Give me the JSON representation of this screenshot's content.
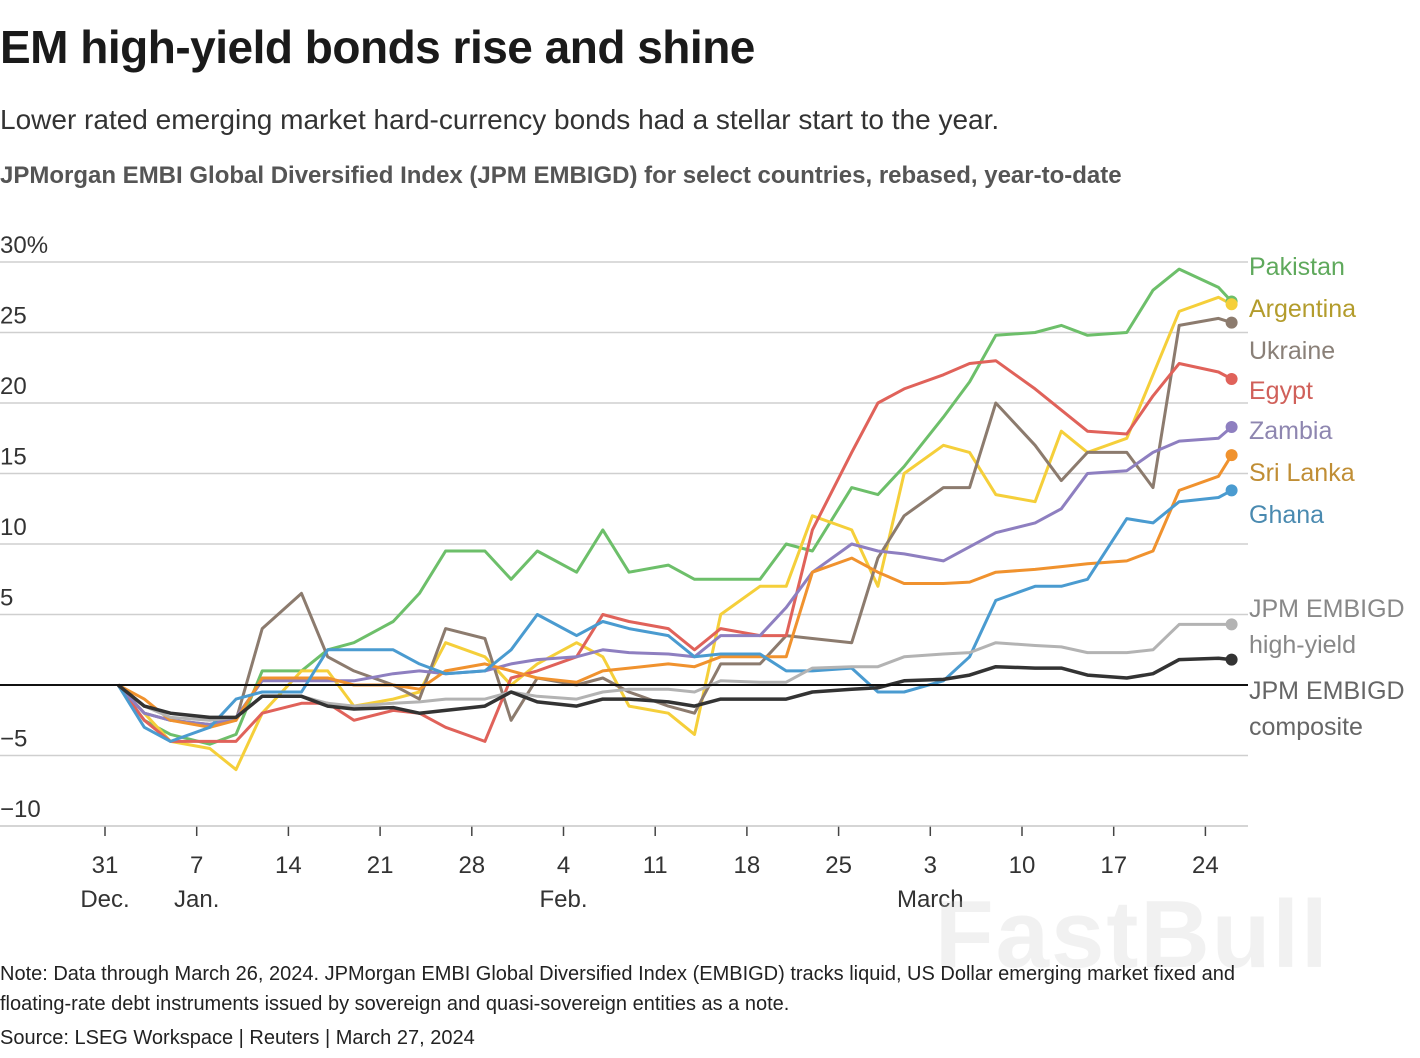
{
  "title": "EM high-yield bonds rise and shine",
  "subtitle": "Lower rated emerging market hard-currency bonds had a stellar start to the year.",
  "notes": {
    "note_line1": "Note: Data through March 26, 2024. JPMorgan EMBI Global Diversified Index (EMBIGD) tracks liquid, US Dollar emerging market fixed and",
    "note_line2": "floating-rate debt instruments issued by sovereign and quasi-sovereign entities as a note.",
    "source": "Source: LSEG Workspace | Reuters | March 27, 2024"
  },
  "watermark": "FastBull",
  "chart_data": {
    "type": "line",
    "title": "JPMorgan EMBI Global Diversified Index (JPM EMBIGD) for select countries, rebased, year-to-date",
    "xlabel": "",
    "ylabel": "",
    "ylim": [
      -10,
      30
    ],
    "yticks": [
      {
        "v": 30,
        "label": "30%"
      },
      {
        "v": 25,
        "label": "25"
      },
      {
        "v": 20,
        "label": "20"
      },
      {
        "v": 15,
        "label": "15"
      },
      {
        "v": 10,
        "label": "10"
      },
      {
        "v": 5,
        "label": "5"
      },
      {
        "v": 0,
        "label": ""
      },
      {
        "v": -5,
        "label": "−5"
      },
      {
        "v": -10,
        "label": "−10"
      }
    ],
    "xticks": [
      {
        "date": "2023-12-31",
        "label": "31",
        "sub": "Dec."
      },
      {
        "date": "2024-01-07",
        "label": "7",
        "sub": "Jan."
      },
      {
        "date": "2024-01-14",
        "label": "14",
        "sub": ""
      },
      {
        "date": "2024-01-21",
        "label": "21",
        "sub": ""
      },
      {
        "date": "2024-01-28",
        "label": "28",
        "sub": ""
      },
      {
        "date": "2024-02-04",
        "label": "4",
        "sub": "Feb."
      },
      {
        "date": "2024-02-11",
        "label": "11",
        "sub": ""
      },
      {
        "date": "2024-02-18",
        "label": "18",
        "sub": ""
      },
      {
        "date": "2024-02-25",
        "label": "25",
        "sub": ""
      },
      {
        "date": "2024-03-03",
        "label": "3",
        "sub": "March"
      },
      {
        "date": "2024-03-10",
        "label": "10",
        "sub": ""
      },
      {
        "date": "2024-03-17",
        "label": "17",
        "sub": ""
      },
      {
        "date": "2024-03-24",
        "label": "24",
        "sub": ""
      }
    ],
    "grid": true,
    "legend": "right (direct labels at line ends)",
    "x": [
      "2024-01-01",
      "2024-01-03",
      "2024-01-05",
      "2024-01-08",
      "2024-01-10",
      "2024-01-12",
      "2024-01-15",
      "2024-01-17",
      "2024-01-19",
      "2024-01-22",
      "2024-01-24",
      "2024-01-26",
      "2024-01-29",
      "2024-01-31",
      "2024-02-02",
      "2024-02-05",
      "2024-02-07",
      "2024-02-09",
      "2024-02-12",
      "2024-02-14",
      "2024-02-16",
      "2024-02-19",
      "2024-02-21",
      "2024-02-23",
      "2024-02-26",
      "2024-02-28",
      "2024-03-01",
      "2024-03-04",
      "2024-03-06",
      "2024-03-08",
      "2024-03-11",
      "2024-03-13",
      "2024-03-15",
      "2024-03-18",
      "2024-03-20",
      "2024-03-22",
      "2024-03-25",
      "2024-03-26"
    ],
    "series": [
      {
        "name": "Pakistan",
        "color": "#6dbf6a",
        "label_color": "#5fa95c",
        "label_lines": [
          "Pakistan"
        ],
        "values": [
          0,
          -2.5,
          -3.5,
          -4.2,
          -3.5,
          1,
          1,
          2.5,
          3,
          4.5,
          6.5,
          9.5,
          9.5,
          7.5,
          9.5,
          8,
          11,
          8,
          8.5,
          7.5,
          7.5,
          7.5,
          10,
          9.5,
          14,
          13.5,
          15.5,
          19,
          21.5,
          24.8,
          25,
          25.5,
          24.8,
          25,
          28,
          29.5,
          28.2,
          27.2
        ]
      },
      {
        "name": "Argentina",
        "color": "#f5cf3a",
        "label_color": "#b39c2c",
        "label_lines": [
          "Argentina"
        ],
        "values": [
          0,
          -2,
          -4,
          -4.5,
          -6,
          -2,
          1,
          1,
          -1.5,
          -1,
          -0.5,
          3,
          2,
          0,
          1.5,
          3,
          2,
          -1.5,
          -2,
          -3.5,
          5,
          7,
          7,
          12,
          11,
          7,
          15,
          17,
          16.5,
          13.5,
          13,
          18,
          16.5,
          17.5,
          22,
          26.5,
          27.5,
          27
        ]
      },
      {
        "name": "Ukraine",
        "color": "#8c7b6e",
        "label_color": "#8a8078",
        "label_lines": [
          "Ukraine"
        ],
        "values": [
          0,
          -2,
          -2.5,
          -2.8,
          -2.5,
          4,
          6.5,
          2,
          1,
          0,
          -1,
          4,
          3.3,
          -2.5,
          0.5,
          0,
          0.5,
          -0.5,
          -1.5,
          -2,
          1.5,
          1.5,
          3.5,
          3.3,
          3,
          9,
          12,
          14,
          14,
          20,
          17,
          14.5,
          16.5,
          16.5,
          14,
          25.5,
          26,
          25.7
        ]
      },
      {
        "name": "Egypt",
        "color": "#e0625a",
        "label_color": "#d0605a",
        "label_lines": [
          "Egypt"
        ],
        "values": [
          0,
          -2.5,
          -4,
          -4,
          -4,
          -2,
          -1.3,
          -1.3,
          -2.5,
          -1.8,
          -2,
          -3,
          -4,
          0.5,
          1,
          2,
          5,
          4.5,
          4,
          2.5,
          4,
          3.5,
          3.5,
          11,
          16.5,
          20,
          21,
          22,
          22.8,
          23,
          21,
          19.5,
          18,
          17.8,
          20.5,
          22.8,
          22.2,
          21.7
        ]
      },
      {
        "name": "Zambia",
        "color": "#8e7fc0",
        "label_color": "#8e86b0",
        "label_lines": [
          "Zambia"
        ],
        "values": [
          0,
          -2,
          -2.5,
          -2.8,
          -2.3,
          0.3,
          0.3,
          0.3,
          0.3,
          0.8,
          1,
          0.8,
          1,
          1.5,
          1.8,
          2,
          2.5,
          2.3,
          2.2,
          2,
          3.5,
          3.5,
          5.5,
          8,
          10,
          9.5,
          9.3,
          8.8,
          9.8,
          10.8,
          11.5,
          12.5,
          15,
          15.2,
          16.5,
          17.3,
          17.5,
          18.3
        ]
      },
      {
        "name": "Sri Lanka",
        "color": "#f0922e",
        "label_color": "#c08e35",
        "label_lines": [
          "Sri Lanka"
        ],
        "values": [
          0,
          -1,
          -2.5,
          -3,
          -2.5,
          0.5,
          0.5,
          0.5,
          0,
          0,
          -0.3,
          1,
          1.5,
          1,
          0.5,
          0.2,
          1,
          1.2,
          1.5,
          1.3,
          2,
          2,
          2,
          8,
          9,
          8,
          7.2,
          7.2,
          7.3,
          8,
          8.2,
          8.4,
          8.6,
          8.8,
          9.5,
          13.8,
          14.8,
          16.3
        ]
      },
      {
        "name": "Ghana",
        "color": "#4a9bd0",
        "label_color": "#4a8ab0",
        "label_lines": [
          "Ghana"
        ],
        "values": [
          0,
          -3,
          -4,
          -3,
          -1,
          -0.5,
          -0.5,
          2.5,
          2.5,
          2.5,
          1.5,
          0.8,
          1,
          2.5,
          5,
          3.5,
          4.5,
          4,
          3.5,
          2,
          2.2,
          2.2,
          1,
          1,
          1.2,
          -0.5,
          -0.5,
          0.3,
          2,
          6,
          7,
          7,
          7.5,
          11.8,
          11.5,
          13,
          13.3,
          13.8
        ]
      },
      {
        "name": "JPM EMBIGD high-yield",
        "color": "#b3b3b3",
        "label_color": "#888888",
        "label_lines": [
          "JPM EMBIGD",
          "high-yield"
        ],
        "values": [
          0,
          -1.5,
          -2.3,
          -2.5,
          -2.3,
          -0.8,
          -0.8,
          -1.3,
          -1.5,
          -1.3,
          -1.2,
          -1,
          -1,
          -0.5,
          -0.8,
          -1,
          -0.5,
          -0.3,
          -0.3,
          -0.5,
          0.3,
          0.2,
          0.2,
          1.2,
          1.3,
          1.3,
          2,
          2.2,
          2.3,
          3,
          2.8,
          2.7,
          2.3,
          2.3,
          2.5,
          4.3,
          4.3,
          4.3
        ]
      },
      {
        "name": "JPM EMBIGD composite",
        "color": "#333333",
        "label_color": "#666666",
        "label_lines": [
          "JPM EMBIGD",
          "composite"
        ],
        "values": [
          0,
          -1.5,
          -2,
          -2.3,
          -2.3,
          -0.8,
          -0.8,
          -1.5,
          -1.7,
          -1.6,
          -2,
          -1.8,
          -1.5,
          -0.5,
          -1.2,
          -1.5,
          -1,
          -1,
          -1.2,
          -1.5,
          -1,
          -1,
          -1,
          -0.5,
          -0.3,
          -0.2,
          0.3,
          0.4,
          0.7,
          1.3,
          1.2,
          1.2,
          0.7,
          0.5,
          0.8,
          1.8,
          1.9,
          1.8
        ]
      }
    ]
  }
}
